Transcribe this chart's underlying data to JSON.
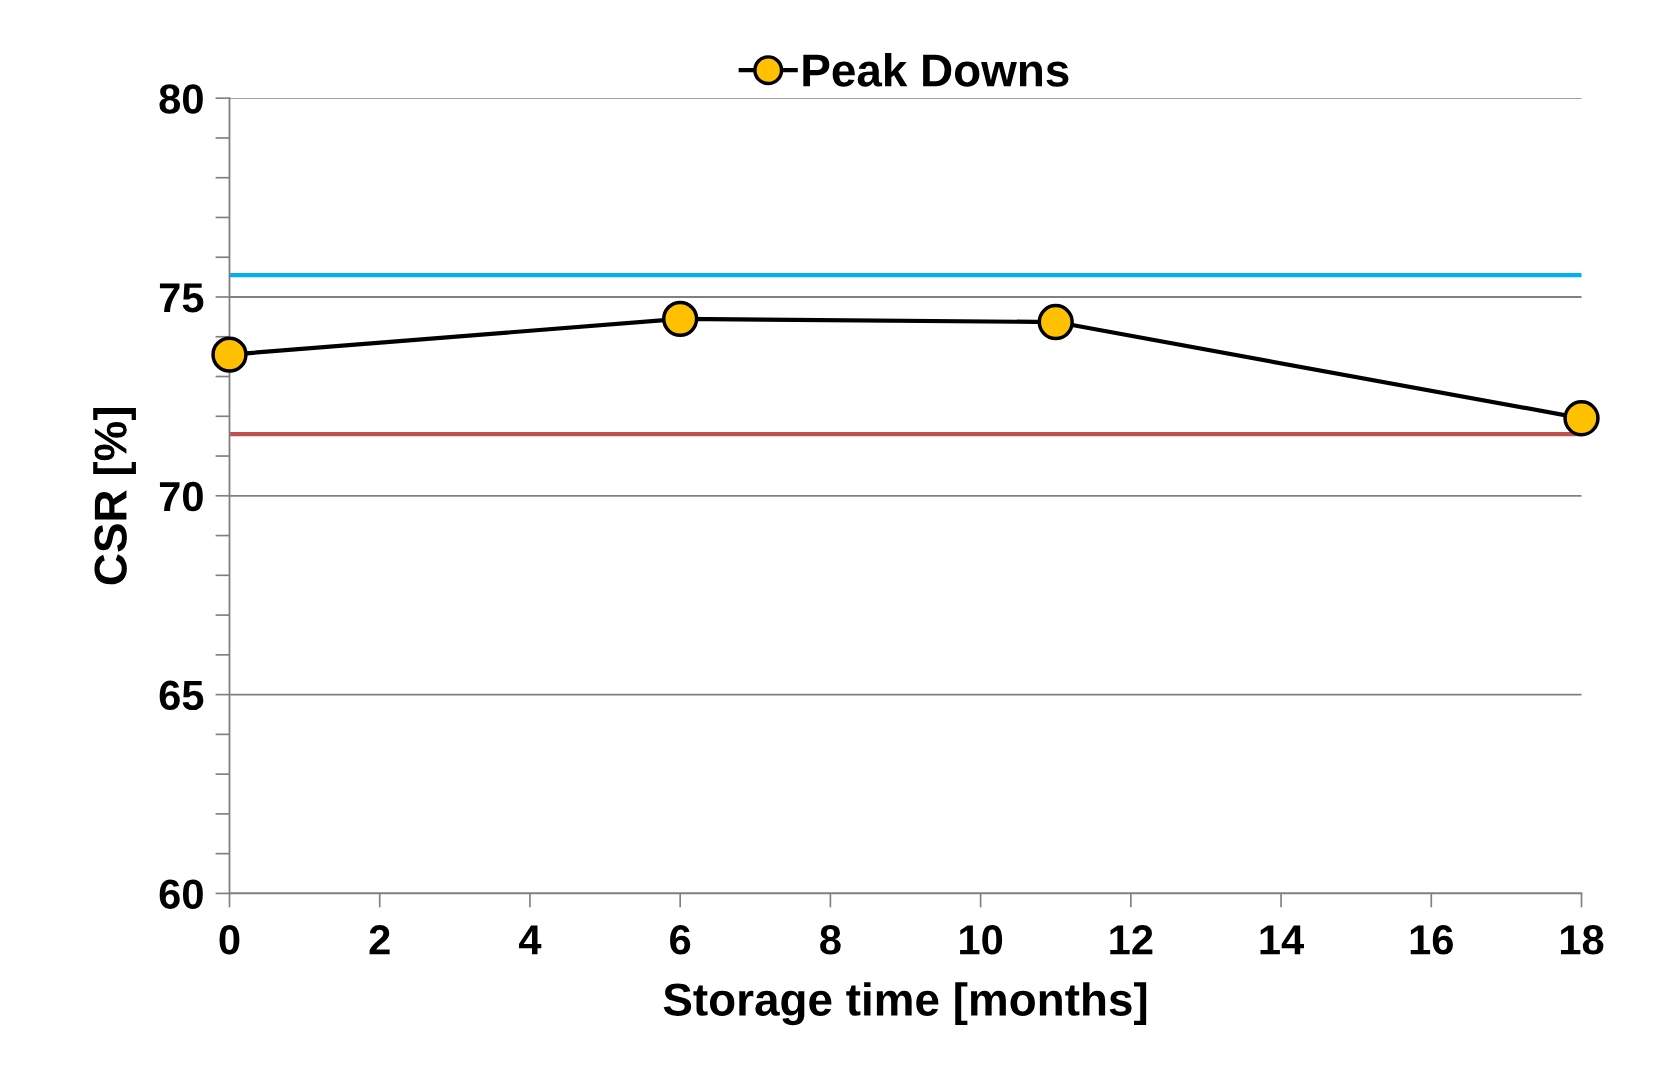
{
  "chart_data": {
    "type": "line",
    "xlabel": "Storage time [months]",
    "ylabel": "CSR [%]",
    "x": [
      0,
      6,
      11,
      18
    ],
    "series": [
      {
        "name": "Peak Downs",
        "color": "#000000",
        "colors": [
          "#ffc000",
          "#ffc000",
          "#ffc000",
          "#ffc000"
        ],
        "values": [
          73.55,
          74.45,
          74.37,
          71.95
        ]
      }
    ],
    "xlim": [
      0,
      18
    ],
    "xticks": [
      0,
      2,
      4,
      6,
      8,
      10,
      12,
      14,
      16,
      18
    ],
    "ylim": [
      60,
      80
    ],
    "yticks": [
      60,
      {
        "value": 61,
        "label": null
      },
      {
        "value": 62,
        "label": null
      },
      {
        "value": 63,
        "label": null
      },
      {
        "value": 64,
        "label": null
      },
      65,
      {
        "value": 66,
        "label": null
      },
      {
        "value": 67,
        "label": null
      },
      {
        "value": 68,
        "label": null
      },
      {
        "value": 69,
        "label": null
      },
      70,
      {
        "value": 71,
        "label": null
      },
      {
        "value": 72,
        "label": null
      },
      {
        "value": 73,
        "label": null
      },
      {
        "value": 74,
        "label": null
      },
      75,
      {
        "value": 76,
        "label": null
      },
      {
        "value": 77,
        "label": null
      },
      {
        "value": 78,
        "label": null
      },
      {
        "value": 79,
        "label": null
      },
      80
    ],
    "ref_lines": [
      {
        "axis": "y",
        "value": 75.55,
        "label": null,
        "color": "#00b0f0"
      },
      {
        "axis": "y",
        "value": 71.55,
        "label": null,
        "color": "#c0504d"
      }
    ],
    "grid": "y",
    "legend": "top",
    "marker": "circle",
    "line_style": "solid"
  }
}
